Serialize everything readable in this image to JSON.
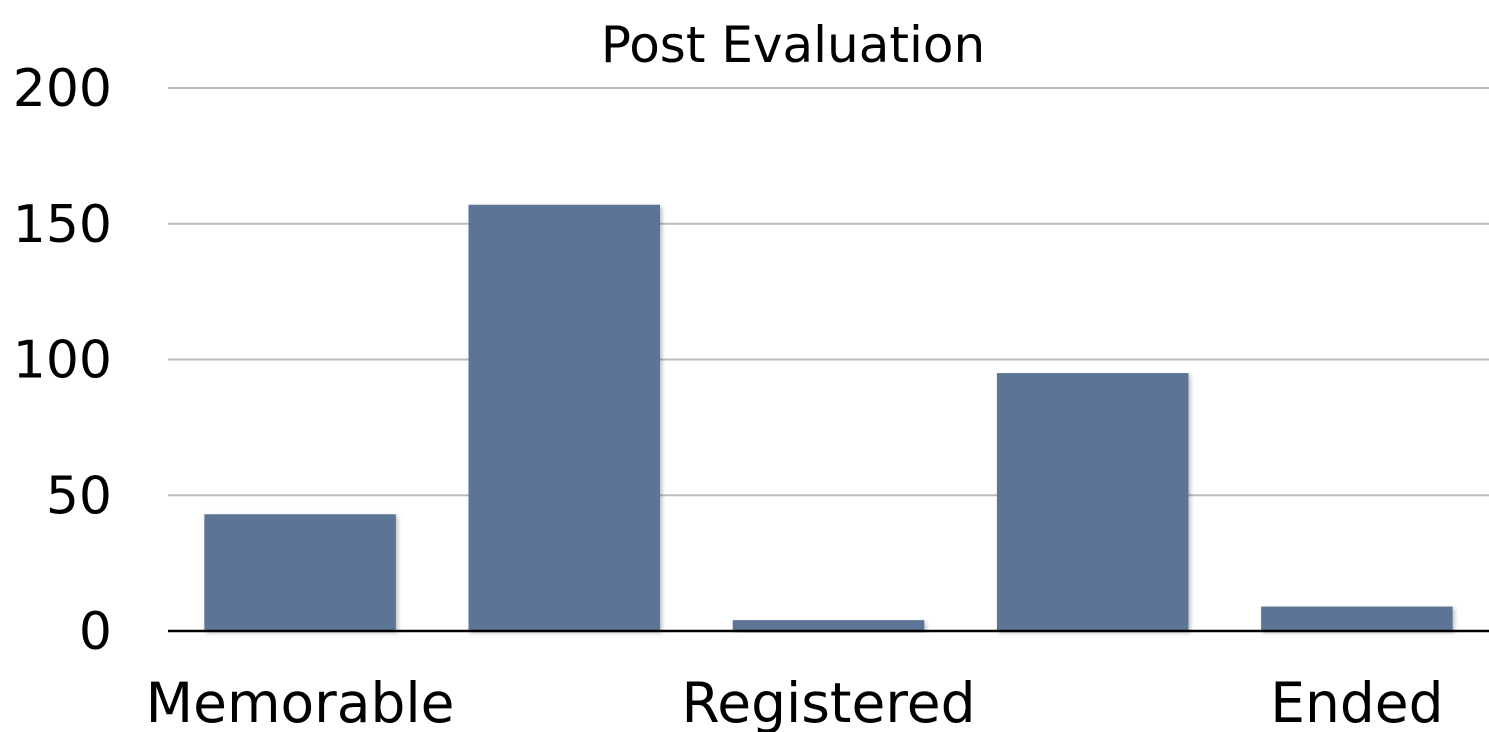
{
  "chart_data": {
    "type": "bar",
    "title": "Post Evaluation",
    "xlabel": "",
    "ylabel": "",
    "categories": [
      "Memorable",
      "",
      "Registered",
      "",
      "Ended"
    ],
    "values": [
      43,
      157,
      4,
      95,
      9
    ],
    "ylim": [
      0,
      200
    ],
    "yticks": [
      "0",
      "50",
      "100",
      "150",
      "200"
    ],
    "grid": true,
    "legend": "none",
    "bar_color": "#5b7596"
  }
}
